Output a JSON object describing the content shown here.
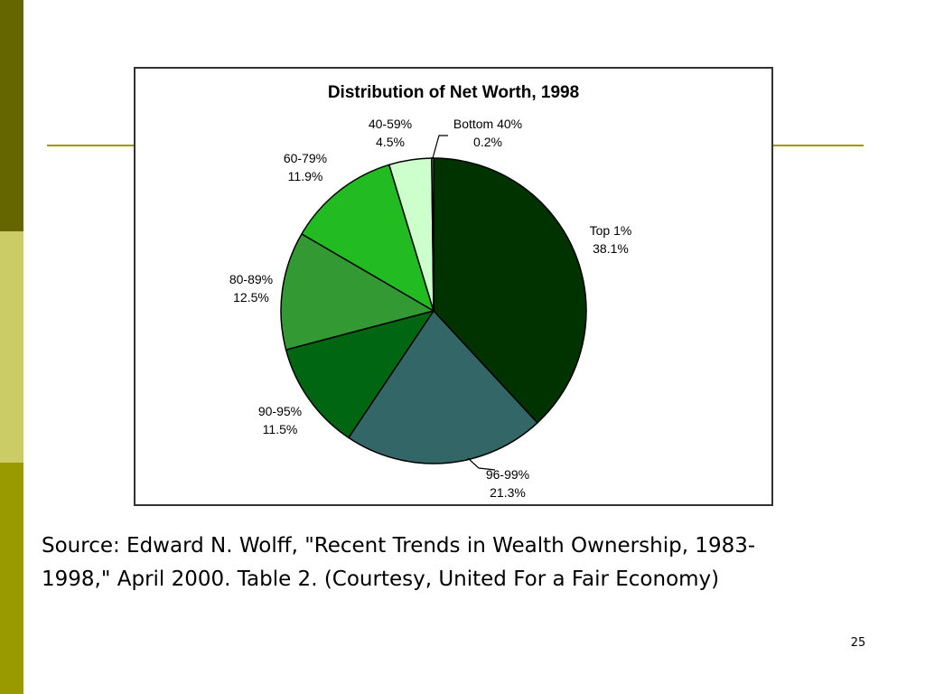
{
  "slide": {
    "caption": "Source: Edward N. Wolff, \"Recent Trends in Wealth Ownership, 1983-1998,\" April 2000. Table 2. (Courtesy, United For a Fair Economy)",
    "page_number": "25",
    "colors": {
      "bar_dark": "#666600",
      "bar_light": "#cccc66",
      "bar_mid": "#999900",
      "rule": "#999900"
    }
  },
  "chart_data": {
    "type": "pie",
    "title": "Distribution of Net Worth, 1998",
    "slices": [
      {
        "name": "Top 1%",
        "value": 38.1,
        "value_label": "38.1%",
        "color": "#003300"
      },
      {
        "name": "96-99%",
        "value": 21.3,
        "value_label": "21.3%",
        "color": "#336666"
      },
      {
        "name": "90-95%",
        "value": 11.5,
        "value_label": "11.5%",
        "color": "#006611"
      },
      {
        "name": "80-89%",
        "value": 12.5,
        "value_label": "12.5%",
        "color": "#339933"
      },
      {
        "name": "60-79%",
        "value": 11.9,
        "value_label": "11.9%",
        "color": "#22bb22"
      },
      {
        "name": "40-59%",
        "value": 4.5,
        "value_label": "4.5%",
        "color": "#ccffcc"
      },
      {
        "name": "Bottom 40%",
        "value": 0.2,
        "value_label": "0.2%",
        "color": "#99cc99"
      }
    ]
  }
}
